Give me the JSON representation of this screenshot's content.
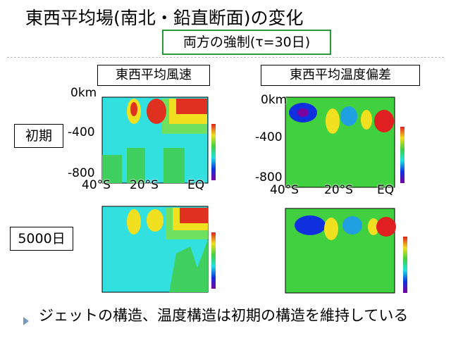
{
  "header": {
    "title": "東西平均場(南北・鉛直断面)の変化",
    "subtitle": "両方の強制(τ=30日)"
  },
  "columns": [
    "東西平均風速",
    "東西平均温度偏差"
  ],
  "rows": [
    "初期",
    "5000日"
  ],
  "axes": [
    {
      "z": [
        "0km",
        "-400",
        "-800"
      ],
      "y": [
        "40°S",
        "20°S",
        "EQ"
      ]
    },
    {
      "z": [
        "0km",
        "-400",
        "-800"
      ],
      "y": [
        "40°S",
        "20°S",
        "EQ"
      ]
    }
  ],
  "footer": "ジェットの構造、温度構造は初期の構造を維持している"
}
